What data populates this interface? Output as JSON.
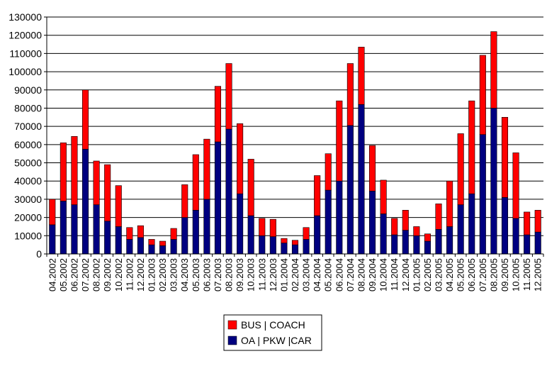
{
  "chart_data": {
    "type": "bar",
    "stacked": true,
    "grid": true,
    "legend_position": "bottom-center",
    "ylim": [
      0,
      130000
    ],
    "yticks": [
      0,
      10000,
      20000,
      30000,
      40000,
      50000,
      60000,
      70000,
      80000,
      90000,
      100000,
      110000,
      120000,
      130000
    ],
    "ytick_labels": [
      "0",
      "10000",
      "20000",
      "30000",
      "40000",
      "50000",
      "60000",
      "70000",
      "80000",
      "90000",
      "100000",
      "110000",
      "120000",
      "130000"
    ],
    "categories": [
      "04.2002",
      "05.2002",
      "06.2002",
      "07.2002",
      "08.2002",
      "09.2002",
      "10.2002",
      "11.2002",
      "12.2002",
      "01.2003",
      "02.2003",
      "03.2003",
      "04.2003",
      "05.2003",
      "06.2003",
      "07.2003",
      "08.2003",
      "09.2003",
      "10.2003",
      "11.2003",
      "12.2003",
      "01.2004",
      "02.2004",
      "03.2004",
      "04.2004",
      "05.2004",
      "06.2004",
      "07.2004",
      "08.2004",
      "09.2004",
      "10.2004",
      "11.2004",
      "12.2004",
      "01.2005",
      "02.2005",
      "03.2005",
      "04.2005",
      "05.2005",
      "06.2005",
      "07.2005",
      "08.2005",
      "09.2005",
      "10.2005",
      "11.2005",
      "12.2005"
    ],
    "series": [
      {
        "name": "OA | PKW |CAR",
        "color": "#000080",
        "values": [
          16000,
          29000,
          27000,
          57500,
          27000,
          18000,
          15000,
          8000,
          9000,
          5000,
          4500,
          8000,
          20000,
          24000,
          30000,
          61500,
          68500,
          33000,
          21000,
          10000,
          9500,
          6000,
          5000,
          8000,
          21000,
          35000,
          40000,
          70500,
          82000,
          34500,
          22000,
          10500,
          13000,
          10000,
          7000,
          13500,
          15000,
          27000,
          33000,
          65500,
          80000,
          31000,
          19500,
          10500,
          12000
        ]
      },
      {
        "name": "BUS | COACH",
        "color": "#ff0000",
        "values": [
          14000,
          32000,
          37500,
          32500,
          24000,
          31000,
          22500,
          6500,
          6500,
          3000,
          2500,
          6000,
          18000,
          30500,
          33000,
          30500,
          36000,
          38500,
          31000,
          9500,
          9500,
          2500,
          2500,
          6500,
          22000,
          20000,
          44000,
          34000,
          31500,
          25000,
          18500,
          9000,
          11000,
          5000,
          4000,
          14000,
          25000,
          39000,
          51000,
          43500,
          42000,
          44000,
          36000,
          12500,
          12000
        ]
      }
    ]
  }
}
